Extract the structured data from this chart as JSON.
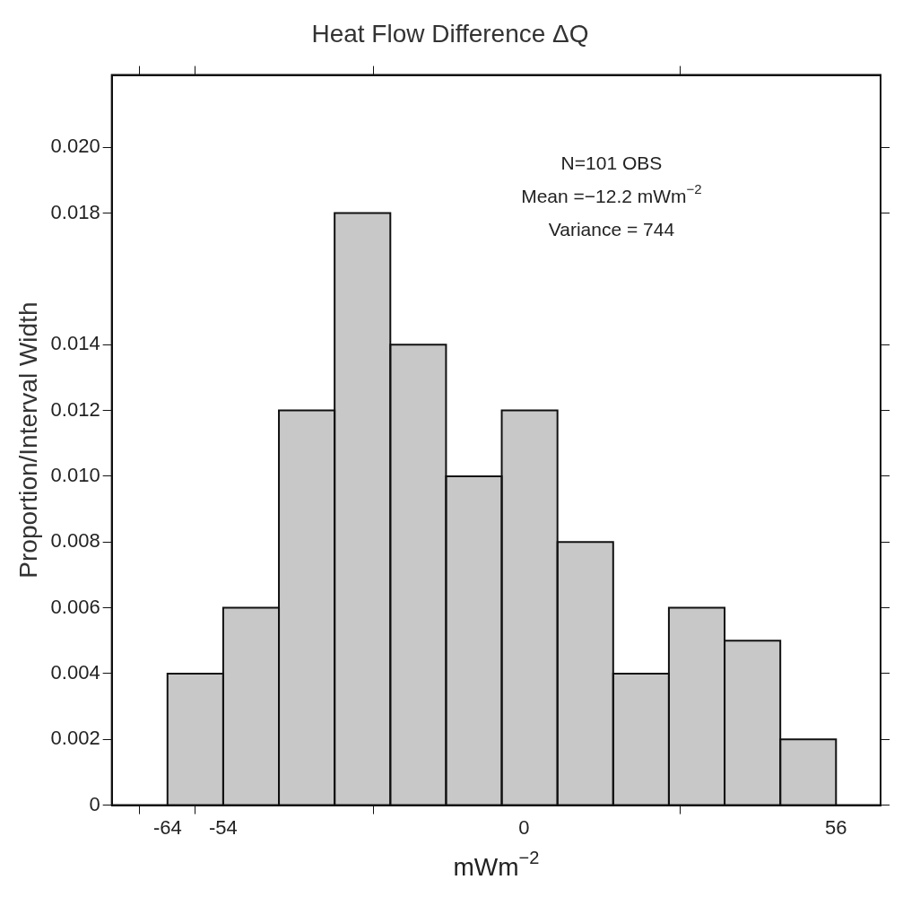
{
  "chart_data": {
    "type": "histogram",
    "title": "Heat Flow Difference ΔQ",
    "xlabel": "mWm$^{−2}$",
    "ylabel": "Proportion/Interval Width",
    "bins": [
      -64,
      -54,
      -44,
      -34,
      -24,
      -14,
      -4,
      6,
      16,
      26,
      36,
      46,
      56
    ],
    "values": [
      0.004,
      0.006,
      0.012,
      0.018,
      0.014,
      0.01,
      0.012,
      0.008,
      0.004,
      0.006,
      0.005,
      0.002
    ],
    "color": "#c8c8c8",
    "xlim": [
      -74,
      64
    ],
    "xticks": [
      -64,
      -54,
      0,
      56
    ],
    "ylim": [
      0,
      0.0222
    ],
    "yticks": [
      0,
      0.002,
      0.004,
      0.006,
      0.008,
      {
        "value": 0.01,
        "label": "0.010"
      },
      0.012,
      0.014,
      0.018,
      {
        "value": 0.02,
        "label": "0.020"
      }
    ],
    "grid": false,
    "legend": false,
    "annotations": [
      "N=101 OBS",
      "Mean =−12.2 mWm$^{−2}$",
      "Variance = 744"
    ]
  }
}
